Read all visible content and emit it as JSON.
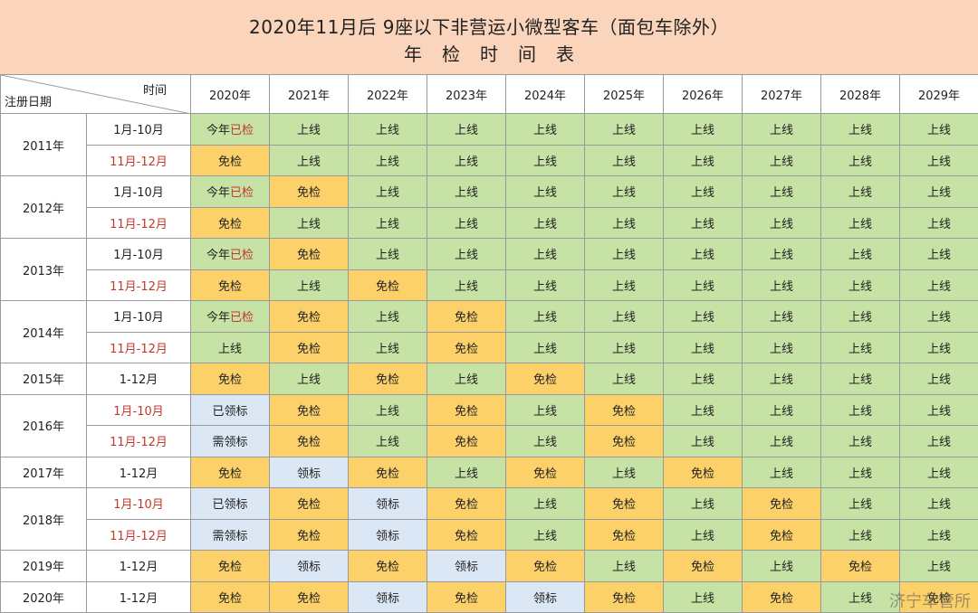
{
  "title": {
    "line1": "2020年11月后 9座以下非营运小微型客车（面包车除外）",
    "line2": "年检时间表"
  },
  "header": {
    "time_label": "时间",
    "reg_label": "注册日期",
    "years": [
      "2020年",
      "2021年",
      "2022年",
      "2023年",
      "2024年",
      "2025年",
      "2026年",
      "2027年",
      "2028年",
      "2029年"
    ]
  },
  "status_labels": {
    "S": "上线",
    "M": "免检",
    "L": "领标",
    "Y": "已领标",
    "X": "需领标",
    "J_prefix": "今年",
    "J_suffix": "已检"
  },
  "rows": [
    {
      "year": "2011年",
      "period": "1月-10月",
      "period_red": false,
      "cells": [
        "J",
        "S",
        "S",
        "S",
        "S",
        "S",
        "S",
        "S",
        "S",
        "S"
      ]
    },
    {
      "year": "2011年",
      "period": "11月-12月",
      "period_red": true,
      "cells": [
        "M",
        "S",
        "S",
        "S",
        "S",
        "S",
        "S",
        "S",
        "S",
        "S"
      ]
    },
    {
      "year": "2012年",
      "period": "1月-10月",
      "period_red": false,
      "cells": [
        "J",
        "M",
        "S",
        "S",
        "S",
        "S",
        "S",
        "S",
        "S",
        "S"
      ]
    },
    {
      "year": "2012年",
      "period": "11月-12月",
      "period_red": true,
      "cells": [
        "M",
        "S",
        "S",
        "S",
        "S",
        "S",
        "S",
        "S",
        "S",
        "S"
      ]
    },
    {
      "year": "2013年",
      "period": "1月-10月",
      "period_red": false,
      "cells": [
        "J",
        "M",
        "S",
        "S",
        "S",
        "S",
        "S",
        "S",
        "S",
        "S"
      ]
    },
    {
      "year": "2013年",
      "period": "11月-12月",
      "period_red": true,
      "cells": [
        "M",
        "S",
        "M",
        "S",
        "S",
        "S",
        "S",
        "S",
        "S",
        "S"
      ]
    },
    {
      "year": "2014年",
      "period": "1月-10月",
      "period_red": false,
      "cells": [
        "J",
        "M",
        "S",
        "M",
        "S",
        "S",
        "S",
        "S",
        "S",
        "S"
      ]
    },
    {
      "year": "2014年",
      "period": "11月-12月",
      "period_red": true,
      "cells": [
        "S",
        "M",
        "S",
        "M",
        "S",
        "S",
        "S",
        "S",
        "S",
        "S"
      ]
    },
    {
      "year": "2015年",
      "period": "1-12月",
      "period_red": false,
      "cells": [
        "M",
        "S",
        "M",
        "S",
        "M",
        "S",
        "S",
        "S",
        "S",
        "S"
      ]
    },
    {
      "year": "2016年",
      "period": "1月-10月",
      "period_red": true,
      "cells": [
        "Y",
        "M",
        "S",
        "M",
        "S",
        "M",
        "S",
        "S",
        "S",
        "S"
      ]
    },
    {
      "year": "2016年",
      "period": "11月-12月",
      "period_red": true,
      "cells": [
        "X",
        "M",
        "S",
        "M",
        "S",
        "M",
        "S",
        "S",
        "S",
        "S"
      ]
    },
    {
      "year": "2017年",
      "period": "1-12月",
      "period_red": false,
      "cells": [
        "M",
        "L",
        "M",
        "S",
        "M",
        "S",
        "M",
        "S",
        "S",
        "S"
      ]
    },
    {
      "year": "2018年",
      "period": "1月-10月",
      "period_red": true,
      "cells": [
        "Y",
        "M",
        "L",
        "M",
        "S",
        "M",
        "S",
        "M",
        "S",
        "S"
      ]
    },
    {
      "year": "2018年",
      "period": "11月-12月",
      "period_red": true,
      "cells": [
        "X",
        "M",
        "L",
        "M",
        "S",
        "M",
        "S",
        "M",
        "S",
        "S"
      ]
    },
    {
      "year": "2019年",
      "period": "1-12月",
      "period_red": false,
      "cells": [
        "M",
        "L",
        "M",
        "L",
        "M",
        "S",
        "M",
        "S",
        "M",
        "S"
      ]
    },
    {
      "year": "2020年",
      "period": "1-12月",
      "period_red": false,
      "cells": [
        "M",
        "M",
        "L",
        "M",
        "L",
        "M",
        "S",
        "M",
        "S",
        "M"
      ]
    }
  ],
  "year_groups": [
    {
      "year": "2011年",
      "span": 2
    },
    {
      "year": "2012年",
      "span": 2
    },
    {
      "year": "2013年",
      "span": 2
    },
    {
      "year": "2014年",
      "span": 2
    },
    {
      "year": "2015年",
      "span": 1
    },
    {
      "year": "2016年",
      "span": 2
    },
    {
      "year": "2017年",
      "span": 1
    },
    {
      "year": "2018年",
      "span": 2
    },
    {
      "year": "2019年",
      "span": 1
    },
    {
      "year": "2020年",
      "span": 1
    }
  ],
  "colors": {
    "title_bg": "#fbd5bb",
    "shangxian": "#c6e2a5",
    "mianjian": "#fcd16a",
    "lingbiao": "#dbe7f5",
    "red_text": "#c0392b"
  },
  "watermark": "济宁车管所"
}
